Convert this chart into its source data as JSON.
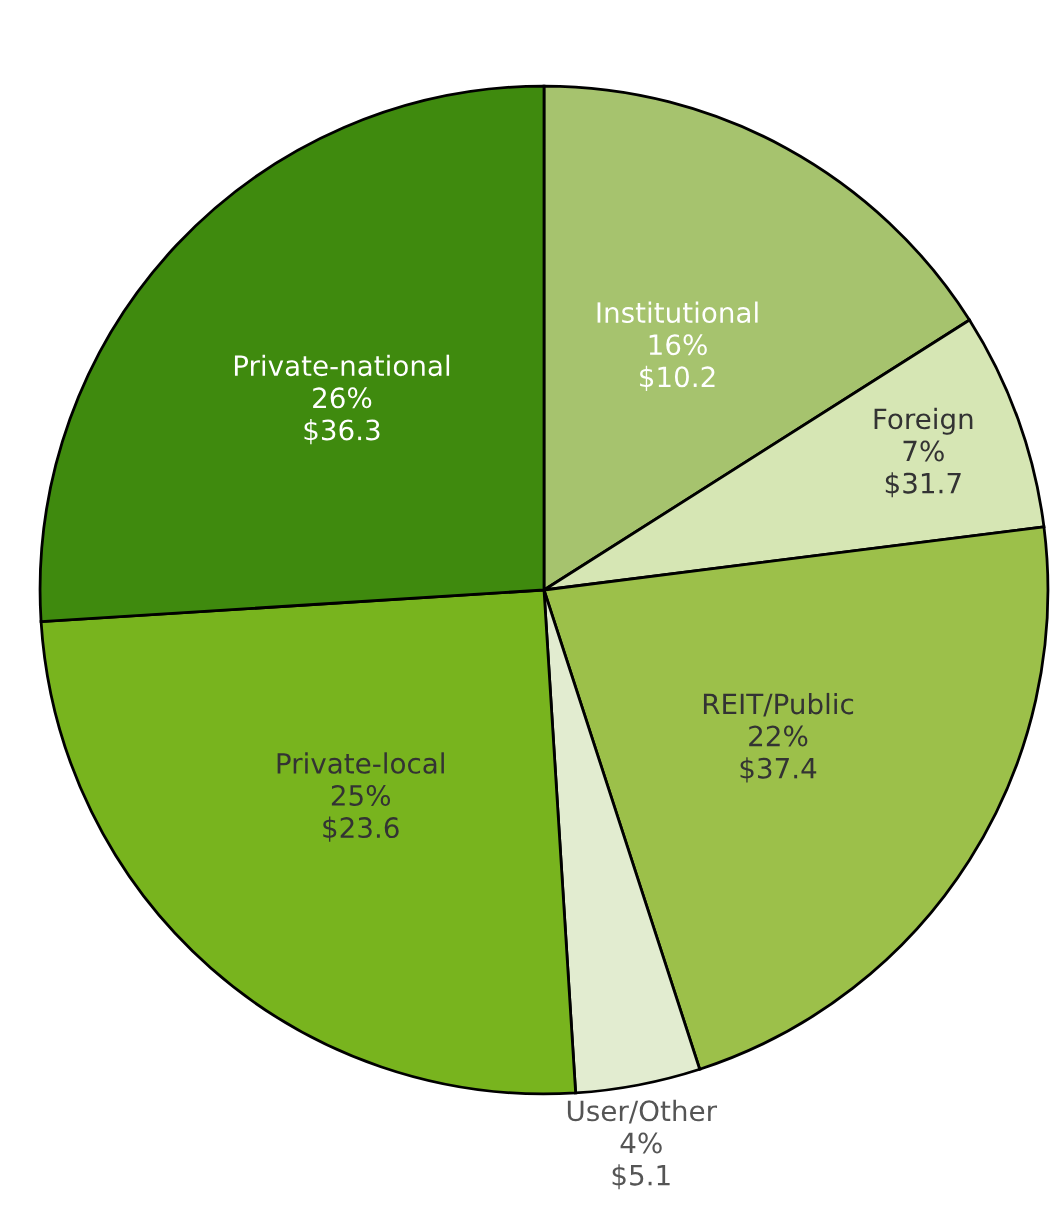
{
  "chart_data": {
    "type": "pie",
    "categories": [
      "Institutional",
      "Foreign",
      "REIT/Public",
      "User/Other",
      "Private-local",
      "Private-national"
    ],
    "values": [
      16,
      7,
      22,
      4,
      25,
      26
    ],
    "value_labels": [
      "16%\n$10.2",
      "7%\n$31.7",
      "22%\n$37.4",
      "4%\n$5.1",
      "25%\n$23.6",
      "26%\n$36.3"
    ],
    "colors": [
      "#a6c36e",
      "#d6e6b4",
      "#9cc04a",
      "#e2ecd0",
      "#78b41e",
      "#3f8a0e"
    ]
  }
}
